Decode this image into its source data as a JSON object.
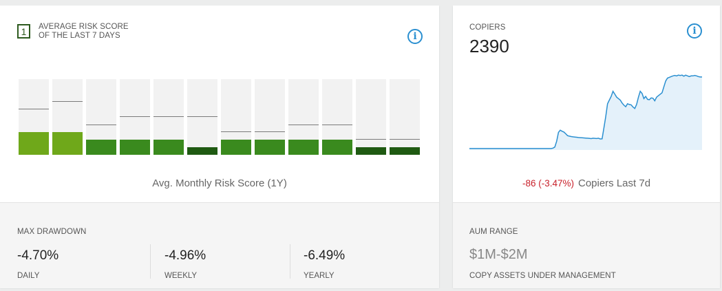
{
  "risk": {
    "badge": "1",
    "title_line1": "AVERAGE RISK SCORE",
    "title_line2": "OF THE LAST 7 DAYS",
    "caption": "Avg. Monthly Risk Score (1Y)",
    "info_icon": "info-icon",
    "bars": [
      {
        "fill_fraction": 0.3,
        "marker_fraction": 0.6,
        "color": "#6fa81a"
      },
      {
        "fill_fraction": 0.3,
        "marker_fraction": 0.7,
        "color": "#6fa81a"
      },
      {
        "fill_fraction": 0.2,
        "marker_fraction": 0.39,
        "color": "#3a8a1e"
      },
      {
        "fill_fraction": 0.2,
        "marker_fraction": 0.5,
        "color": "#3a8a1e"
      },
      {
        "fill_fraction": 0.2,
        "marker_fraction": 0.5,
        "color": "#3a8a1e"
      },
      {
        "fill_fraction": 0.1,
        "marker_fraction": 0.5,
        "color": "#1f5a12"
      },
      {
        "fill_fraction": 0.2,
        "marker_fraction": 0.3,
        "color": "#3a8a1e"
      },
      {
        "fill_fraction": 0.2,
        "marker_fraction": 0.3,
        "color": "#3a8a1e"
      },
      {
        "fill_fraction": 0.2,
        "marker_fraction": 0.39,
        "color": "#3a8a1e"
      },
      {
        "fill_fraction": 0.2,
        "marker_fraction": 0.39,
        "color": "#3a8a1e"
      },
      {
        "fill_fraction": 0.1,
        "marker_fraction": 0.2,
        "color": "#1f5a12"
      },
      {
        "fill_fraction": 0.1,
        "marker_fraction": 0.2,
        "color": "#1f5a12"
      }
    ]
  },
  "drawdown": {
    "label": "MAX DRAWDOWN",
    "stats": [
      {
        "value": "-4.70%",
        "label": "DAILY"
      },
      {
        "value": "-4.96%",
        "label": "WEEKLY"
      },
      {
        "value": "-6.49%",
        "label": "YEARLY"
      }
    ]
  },
  "copiers": {
    "label": "COPIERS",
    "value": "2390",
    "change": "-86 (-3.47%)",
    "change_label": "Copiers Last 7d",
    "info_icon": "info-icon",
    "line_color": "#2a8fd0",
    "fill_color": "#e4f1fa",
    "trend": [
      2.0,
      2.0,
      2.0,
      2.0,
      2.0,
      2.0,
      2.0,
      2.0,
      2.0,
      2.0,
      2.0,
      2.0,
      2.0,
      2.0,
      2.0,
      2.0,
      2.0,
      2.0,
      2.0,
      2.0,
      2.0,
      2.0,
      2.0,
      2.0,
      2.0,
      2.0,
      2.0,
      2.0,
      2.0,
      2.0,
      2.0,
      2.0,
      2.0,
      2.0,
      2.0,
      2.0,
      2.0,
      2.0,
      2.0,
      2.0,
      2.0,
      2.0,
      2.0,
      2.0,
      2.0,
      2.0,
      2.5,
      4.0,
      12.0,
      24.0,
      27.0,
      25.5,
      24.5,
      22.0,
      19.5,
      18.8,
      18.3,
      17.9,
      17.6,
      17.3,
      17.0,
      16.8,
      16.6,
      16.4,
      16.2,
      16.0,
      15.8,
      15.5,
      16.0,
      15.8,
      15.6,
      16.0,
      15.0,
      15.2,
      30.0,
      45.0,
      63.0,
      68.0,
      73.0,
      80.0,
      76.0,
      72.0,
      70.0,
      68.0,
      64.0,
      61.0,
      59.0,
      63.0,
      62.0,
      61.5,
      58.5,
      56.5,
      62.0,
      72.0,
      80.0,
      77.0,
      70.0,
      73.0,
      69.0,
      68.5,
      71.0,
      70.5,
      67.0,
      72.0,
      74.0,
      76.0,
      78.0,
      86.0,
      94.0,
      98.0,
      99.0,
      100.0,
      101.0,
      101.5,
      101.0,
      102.0,
      101.5,
      102.0,
      100.5,
      102.0,
      101.0,
      100.0,
      101.0,
      101.0,
      101.5,
      101.0,
      100.0,
      99.5,
      99.5
    ]
  },
  "aum": {
    "label": "AUM RANGE",
    "value": "$1M-$2M",
    "sub": "COPY ASSETS UNDER MANAGEMENT"
  }
}
